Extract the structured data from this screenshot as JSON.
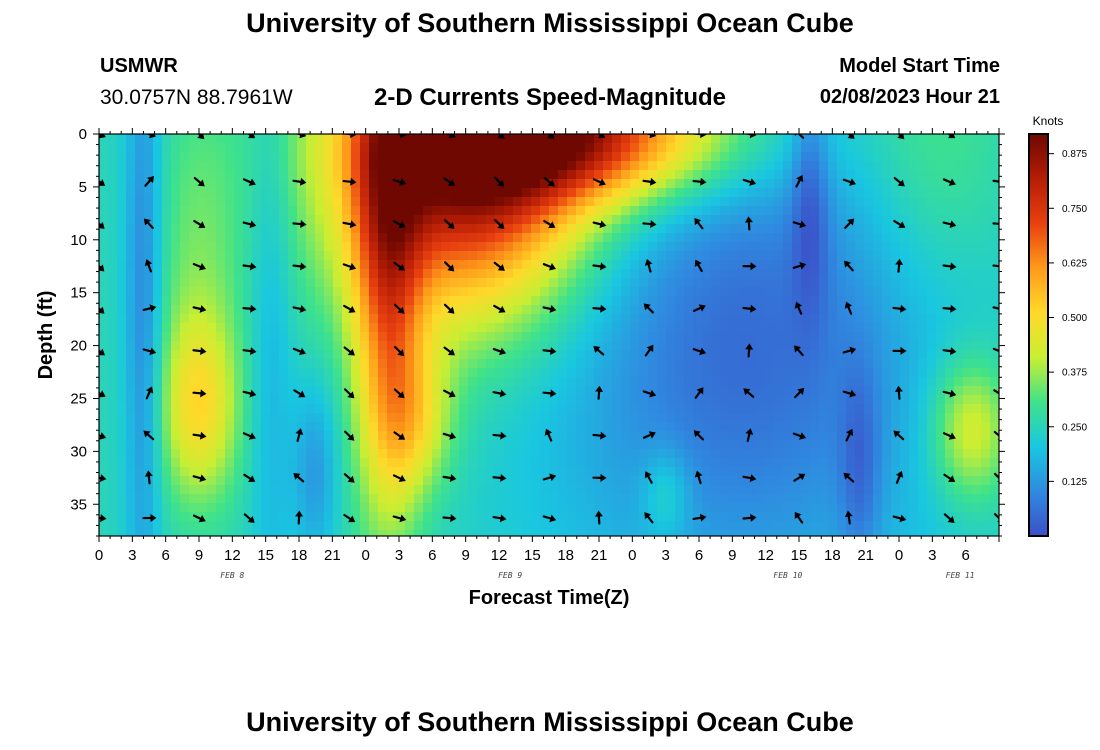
{
  "header": {
    "title": "University of Southern Mississippi Ocean Cube",
    "station_name": "USMWR",
    "station_coords": "30.0757N  88.7961W",
    "subtitle": "2-D Currents Speed-Magnitude",
    "model_start_label": "Model Start Time",
    "model_start_value": "02/08/2023 Hour 21"
  },
  "footer": {
    "title": "University of Southern Mississippi Ocean Cube"
  },
  "chart_data": {
    "type": "heatmap",
    "title": "2-D Currents Speed-Magnitude",
    "xlabel": "Forecast Time(Z)",
    "ylabel": "Depth (ft)",
    "x_hours_range": [
      0,
      81
    ],
    "x_tick_labels": [
      "0",
      "3",
      "6",
      "9",
      "12",
      "15",
      "18",
      "21",
      "0",
      "3",
      "6",
      "9",
      "12",
      "15",
      "18",
      "21",
      "0",
      "3",
      "6",
      "9",
      "12",
      "15",
      "18",
      "21",
      "0",
      "3",
      "6"
    ],
    "day_labels": [
      {
        "label": "FEB 8",
        "hour": 12
      },
      {
        "label": "FEB 9",
        "hour": 37
      },
      {
        "label": "FEB 10",
        "hour": 62
      },
      {
        "label": "FEB 11",
        "hour": 77.5
      }
    ],
    "y_range": [
      0,
      38
    ],
    "y_ticks": [
      0,
      5,
      10,
      15,
      20,
      25,
      30,
      35
    ],
    "colorbar": {
      "title": "Knots",
      "ticks": [
        "0.875",
        "0.750",
        "0.625",
        "0.500",
        "0.375",
        "0.250",
        "0.125"
      ],
      "tick_values": [
        0.875,
        0.75,
        0.625,
        0.5,
        0.375,
        0.25,
        0.125
      ],
      "range": [
        0.0,
        0.92
      ],
      "colors": [
        "#3c4fc8",
        "#2f8be0",
        "#19c7e0",
        "#3fe28a",
        "#c9ee32",
        "#ffd92a",
        "#ff9a1a",
        "#e84010",
        "#b51d06",
        "#6e0800"
      ]
    },
    "speed_model": {
      "background": 0.25,
      "blobs": [
        {
          "hour": 33,
          "depth": 3,
          "sx": 8,
          "sy": 10,
          "amp": 0.62
        },
        {
          "hour": 43,
          "depth": 0,
          "sx": 10,
          "sy": 4.5,
          "amp": 0.5
        },
        {
          "hour": 26,
          "depth": 14,
          "sx": 2.2,
          "sy": 16,
          "amp": 0.34
        },
        {
          "hour": 28.5,
          "depth": 27,
          "sx": 2.5,
          "sy": 5,
          "amp": 0.18
        },
        {
          "hour": 9,
          "depth": 26,
          "sx": 2.5,
          "sy": 6,
          "amp": 0.22
        },
        {
          "hour": 9,
          "depth": 12,
          "sx": 2.8,
          "sy": 12,
          "amp": 0.09
        },
        {
          "hour": 78.5,
          "depth": 28,
          "sx": 2.6,
          "sy": 4.8,
          "amp": 0.22
        },
        {
          "hour": 75,
          "depth": 2,
          "sx": 5,
          "sy": 10,
          "amp": 0.09
        },
        {
          "hour": 4,
          "depth": 16,
          "sx": 1.2,
          "sy": 22,
          "amp": -0.16
        },
        {
          "hour": 15.5,
          "depth": 20,
          "sx": 1.5,
          "sy": 22,
          "amp": -0.08
        },
        {
          "hour": 19.5,
          "depth": 32,
          "sx": 1.4,
          "sy": 6,
          "amp": -0.12
        },
        {
          "hour": 58,
          "depth": 20,
          "sx": 13,
          "sy": 18,
          "amp": -0.2
        },
        {
          "hour": 64,
          "depth": 5,
          "sx": 1.2,
          "sy": 8,
          "amp": -0.12
        },
        {
          "hour": 68.5,
          "depth": 32,
          "sx": 1.3,
          "sy": 7,
          "amp": -0.1
        },
        {
          "hour": 51,
          "depth": 34,
          "sx": 1.5,
          "sy": 3,
          "amp": 0.1
        }
      ]
    },
    "arrow_rows_depth": [
      0,
      4.5,
      8.5,
      12.5,
      16.5,
      20.5,
      24.5,
      28.5,
      32.5,
      36.3
    ],
    "arrow_cols_hour": [
      0,
      4.5,
      9,
      13.5,
      18,
      22.5,
      27,
      31.5,
      36,
      40.5,
      45,
      49.5,
      54,
      58.5,
      63,
      67.5,
      72,
      76.5,
      81
    ]
  }
}
